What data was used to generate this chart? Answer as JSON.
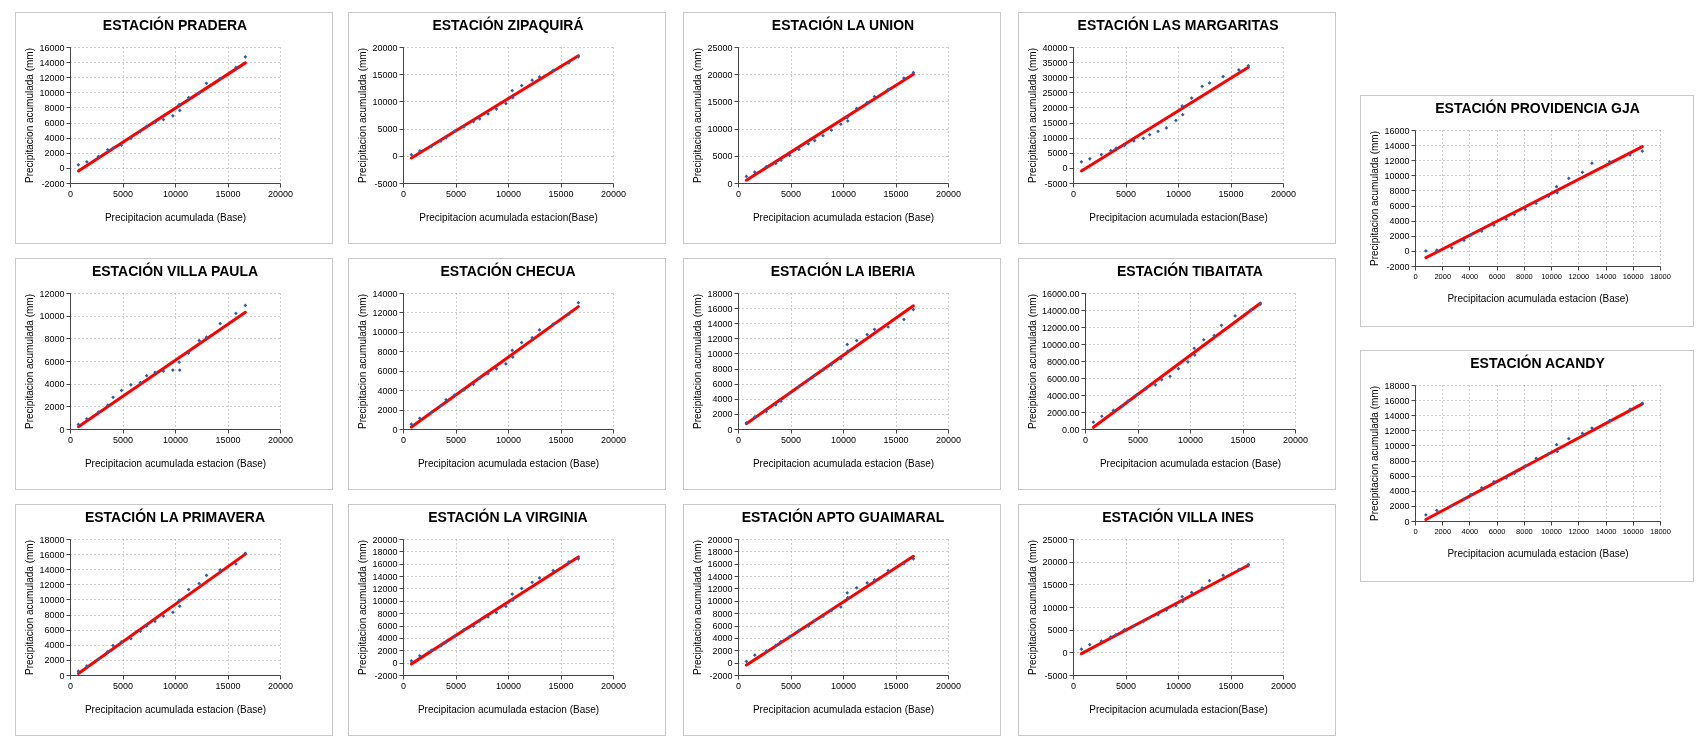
{
  "chart_data": [
    {
      "type": "scatter",
      "title": "ESTACIÓN  PRADERA",
      "xlabel": "Precipitacion  acumulada (Base)",
      "ylabel": "Precipitacion  acumulada  (mm)",
      "xlim": [
        0,
        20000
      ],
      "xticks": [
        0,
        5000,
        10000,
        15000,
        20000
      ],
      "ylim": [
        -2000,
        16000
      ],
      "yticks": [
        -2000,
        0,
        2000,
        4000,
        6000,
        8000,
        10000,
        12000,
        14000,
        16000
      ],
      "grid": true,
      "marker": "diamond",
      "series": [
        {
          "type": "scatter",
          "color": "#2e5ea8",
          "x": [
            800,
            1600,
            2700,
            3600,
            4100,
            4900,
            5800,
            6700,
            7300,
            8100,
            8900,
            9800,
            10400,
            10450,
            11300,
            12300,
            13000,
            14300,
            15800,
            16700
          ],
          "values": [
            400,
            800,
            1500,
            2400,
            2600,
            3000,
            3900,
            4800,
            5500,
            6000,
            6400,
            6900,
            8400,
            7600,
            9300,
            9900,
            11200,
            11800,
            13300,
            14700
          ]
        },
        {
          "type": "line",
          "color": "#ff0000",
          "marker": "none",
          "x": [
            800,
            16700
          ],
          "values": [
            -400,
            13900
          ]
        }
      ]
    },
    {
      "type": "scatter",
      "title": "ESTACIÓN ZIPAQUIRÁ",
      "xlabel": "Precipitacion  acumulada estacion(Base)",
      "ylabel": "Precipitacion  acumulada  (mm)",
      "xlim": [
        0,
        20000
      ],
      "xticks": [
        0,
        5000,
        10000,
        15000,
        20000
      ],
      "ylim": [
        -5000,
        20000
      ],
      "yticks": [
        -5000,
        0,
        5000,
        10000,
        15000,
        20000
      ],
      "grid": true,
      "marker": "diamond",
      "series": [
        {
          "type": "scatter",
          "color": "#2e5ea8",
          "x": [
            800,
            1600,
            2700,
            3600,
            4100,
            4900,
            5800,
            6700,
            7300,
            8100,
            8900,
            9800,
            10400,
            10450,
            11300,
            12300,
            13000,
            14300,
            15800,
            16700
          ],
          "values": [
            200,
            900,
            1700,
            2700,
            3300,
            4500,
            5300,
            6300,
            6800,
            7700,
            8600,
            9600,
            12000,
            10700,
            12900,
            13900,
            14500,
            15700,
            17100,
            18200
          ]
        },
        {
          "type": "line",
          "color": "#ff0000",
          "marker": "none",
          "x": [
            800,
            16700
          ],
          "values": [
            -400,
            18400
          ]
        }
      ]
    },
    {
      "type": "scatter",
      "title": "ESTACIÓN LA UNION",
      "xlabel": "Precipitacion  acumulada estacion  (Base)",
      "ylabel": "Precipitacion  acumulada  (mm)",
      "xlim": [
        0,
        20000
      ],
      "xticks": [
        0,
        5000,
        10000,
        15000,
        20000
      ],
      "ylim": [
        0,
        25000
      ],
      "yticks": [
        0,
        5000,
        10000,
        15000,
        20000,
        25000
      ],
      "grid": true,
      "marker": "diamond",
      "series": [
        {
          "type": "scatter",
          "color": "#2e5ea8",
          "x": [
            800,
            1600,
            2700,
            3600,
            4100,
            4900,
            5800,
            6700,
            7300,
            8100,
            8900,
            9800,
            10400,
            10450,
            11300,
            12300,
            13000,
            14300,
            15800,
            16700
          ],
          "values": [
            1200,
            2000,
            3000,
            3600,
            4200,
            5100,
            6200,
            7200,
            7800,
            8700,
            9700,
            10800,
            12000,
            11400,
            13700,
            14800,
            15900,
            17200,
            19300,
            20300
          ]
        },
        {
          "type": "line",
          "color": "#ff0000",
          "marker": "none",
          "x": [
            800,
            16700
          ],
          "values": [
            500,
            20000
          ]
        }
      ]
    },
    {
      "type": "scatter",
      "title": "ESTACIÓN LAS MARGARITAS",
      "xlabel": "Precipitacion  acumulada estacion(Base)",
      "ylabel": "Precipitacion  acumulada  (mm)",
      "xlim": [
        0,
        20000
      ],
      "xticks": [
        0,
        5000,
        10000,
        15000,
        20000
      ],
      "ylim": [
        -5000,
        40000
      ],
      "yticks": [
        -5000,
        0,
        5000,
        10000,
        15000,
        20000,
        25000,
        30000,
        35000,
        40000
      ],
      "grid": true,
      "marker": "diamond",
      "series": [
        {
          "type": "scatter",
          "color": "#2e5ea8",
          "x": [
            800,
            1600,
            2700,
            3600,
            4100,
            4900,
            5800,
            6700,
            7300,
            8100,
            8900,
            9800,
            10400,
            10450,
            11300,
            12300,
            13000,
            14300,
            15800,
            16700
          ],
          "values": [
            2000,
            3000,
            4400,
            5700,
            6500,
            7400,
            8900,
            9800,
            11000,
            12100,
            13200,
            15700,
            20500,
            17600,
            23100,
            27000,
            28100,
            30200,
            32400,
            33800
          ]
        },
        {
          "type": "line",
          "color": "#ff0000",
          "marker": "none",
          "x": [
            800,
            16700
          ],
          "values": [
            -1000,
            33300
          ]
        }
      ]
    },
    {
      "type": "scatter",
      "title": "ESTACIÓN PROVIDENCIA GJA",
      "xlabel": "Precipitacion  acumulada estacion  (Base)",
      "ylabel": "Precipitacion  acumulada  (mm)",
      "xlim": [
        0,
        18000
      ],
      "xticks": [
        0,
        2000,
        4000,
        6000,
        8000,
        10000,
        12000,
        14000,
        16000,
        18000
      ],
      "ylim": [
        -2000,
        16000
      ],
      "yticks": [
        -2000,
        0,
        2000,
        4000,
        6000,
        8000,
        10000,
        12000,
        14000,
        16000
      ],
      "grid": true,
      "marker": "diamond",
      "series": [
        {
          "type": "scatter",
          "color": "#2e5ea8",
          "x": [
            800,
            1600,
            2700,
            3600,
            4100,
            4900,
            5800,
            6700,
            7300,
            8100,
            8900,
            9800,
            10400,
            10450,
            11300,
            12300,
            13000,
            14300,
            15800,
            16700
          ],
          "values": [
            0,
            100,
            400,
            1400,
            2100,
            2600,
            3400,
            4200,
            4800,
            5500,
            6300,
            7200,
            8500,
            7700,
            9600,
            10400,
            11600,
            11800,
            12700,
            13200
          ]
        },
        {
          "type": "line",
          "color": "#ff0000",
          "marker": "none",
          "x": [
            800,
            16700
          ],
          "values": [
            -900,
            13800
          ]
        }
      ]
    },
    {
      "type": "scatter",
      "title": "ESTACIÓN VILLA PAULA",
      "xlabel": "Precipitacion  acumulada estacion (Base)",
      "ylabel": "Precipitacion  acumulada  (mm)",
      "xlim": [
        0,
        20000
      ],
      "xticks": [
        0,
        5000,
        10000,
        15000,
        20000
      ],
      "ylim": [
        0,
        12000
      ],
      "yticks": [
        0,
        2000,
        4000,
        6000,
        8000,
        10000,
        12000
      ],
      "grid": true,
      "marker": "diamond",
      "series": [
        {
          "type": "scatter",
          "color": "#2e5ea8",
          "x": [
            800,
            1600,
            2700,
            3600,
            4100,
            4900,
            5800,
            6700,
            7300,
            8100,
            8900,
            9800,
            10400,
            10450,
            11300,
            12300,
            13000,
            14300,
            15800,
            16700
          ],
          "values": [
            400,
            900,
            1500,
            2100,
            2800,
            3400,
            3900,
            4100,
            4700,
            5000,
            5100,
            5200,
            5900,
            5200,
            6700,
            7800,
            8100,
            9300,
            10200,
            10900
          ]
        },
        {
          "type": "line",
          "color": "#ff0000",
          "marker": "none",
          "x": [
            800,
            16700
          ],
          "values": [
            200,
            10300
          ]
        }
      ]
    },
    {
      "type": "scatter",
      "title": "ESTACIÓN CHECUA",
      "xlabel": "Precipitacion  acumulada estacion (Base)",
      "ylabel": "Precipitacion  acumulada  (mm)",
      "xlim": [
        0,
        20000
      ],
      "xticks": [
        0,
        5000,
        10000,
        15000,
        20000
      ],
      "ylim": [
        0,
        14000
      ],
      "yticks": [
        0,
        2000,
        4000,
        6000,
        8000,
        10000,
        12000,
        14000
      ],
      "grid": true,
      "marker": "diamond",
      "series": [
        {
          "type": "scatter",
          "color": "#2e5ea8",
          "x": [
            800,
            1600,
            2700,
            3600,
            4100,
            4900,
            5800,
            6700,
            7300,
            8100,
            8900,
            9800,
            10400,
            10450,
            11300,
            12300,
            13000,
            14300,
            15800,
            16700
          ],
          "values": [
            500,
            1100,
            1700,
            2400,
            3000,
            3500,
            4000,
            4600,
            5200,
            5700,
            6200,
            6700,
            8100,
            7400,
            8900,
            9400,
            10200,
            10800,
            11800,
            13000
          ]
        },
        {
          "type": "line",
          "color": "#ff0000",
          "marker": "none",
          "x": [
            800,
            16700
          ],
          "values": [
            200,
            12600
          ]
        }
      ]
    },
    {
      "type": "scatter",
      "title": "ESTACIÓN LA IBERIA",
      "xlabel": "Precipitacion  acumulada estacion  (Base)",
      "ylabel": "Precipitacion  acumulada  (mm)",
      "xlim": [
        0,
        20000
      ],
      "xticks": [
        0,
        5000,
        10000,
        15000,
        20000
      ],
      "ylim": [
        0,
        18000
      ],
      "yticks": [
        0,
        2000,
        4000,
        6000,
        8000,
        10000,
        12000,
        14000,
        16000,
        18000
      ],
      "grid": true,
      "marker": "diamond",
      "series": [
        {
          "type": "scatter",
          "color": "#2e5ea8",
          "x": [
            800,
            1600,
            2700,
            3600,
            4100,
            4900,
            5800,
            6700,
            7300,
            8100,
            8900,
            9800,
            10400,
            10450,
            11300,
            12300,
            13000,
            14300,
            15800,
            16700
          ],
          "values": [
            800,
            1600,
            2300,
            3200,
            3700,
            4700,
            5600,
            6500,
            7100,
            7800,
            8500,
            9300,
            11200,
            10300,
            11700,
            12500,
            13200,
            13500,
            14500,
            15800
          ]
        },
        {
          "type": "line",
          "color": "#ff0000",
          "marker": "none",
          "x": [
            800,
            16700
          ],
          "values": [
            700,
            16300
          ]
        }
      ]
    },
    {
      "type": "scatter",
      "title": "ESTACIÓN TIBAITATA",
      "xlabel": "Precipitacion  acumulada estacion  (Base)",
      "ylabel": "Precipitacion  acumulada  (mm)",
      "xlim": [
        0,
        20000
      ],
      "xticks": [
        0,
        5000,
        10000,
        15000,
        20000
      ],
      "ylim": [
        0,
        16000
      ],
      "yticks": [
        {
          "value": 0,
          "label": "0.00"
        },
        {
          "value": 2000,
          "label": "2000.00"
        },
        {
          "value": 4000,
          "label": "4000.00"
        },
        {
          "value": 6000,
          "label": "6000.00"
        },
        {
          "value": 8000,
          "label": "8000.00"
        },
        {
          "value": 10000,
          "label": "10000.00"
        },
        {
          "value": 12000,
          "label": "12000.00"
        },
        {
          "value": 14000,
          "label": "14000.00"
        },
        {
          "value": 16000,
          "label": "16000.00"
        }
      ],
      "grid": true,
      "marker": "diamond",
      "series": [
        {
          "type": "scatter",
          "color": "#2e5ea8",
          "x": [
            800,
            1600,
            2700,
            3600,
            4100,
            4900,
            5800,
            6700,
            7300,
            8100,
            8900,
            9800,
            10400,
            10450,
            11300,
            12300,
            13000,
            14300,
            15800,
            16700
          ],
          "values": [
            800,
            1500,
            2200,
            2700,
            3300,
            4000,
            4700,
            5200,
            5800,
            6200,
            7100,
            7900,
            9500,
            8700,
            10500,
            11000,
            12200,
            13300,
            14000,
            14700
          ]
        },
        {
          "type": "line",
          "color": "#ff0000",
          "marker": "none",
          "x": [
            800,
            16700
          ],
          "values": [
            200,
            14800
          ]
        }
      ]
    },
    {
      "type": "scatter",
      "title": "ESTACIÓN ACANDY",
      "xlabel": "Precipitacion  acumulada estacion  (Base)",
      "ylabel": "Precipitacion  acumulada  (mm)",
      "xlim": [
        0,
        18000
      ],
      "xticks": [
        0,
        2000,
        4000,
        6000,
        8000,
        10000,
        12000,
        14000,
        16000,
        18000
      ],
      "ylim": [
        0,
        18000
      ],
      "yticks": [
        0,
        2000,
        4000,
        6000,
        8000,
        10000,
        12000,
        14000,
        16000,
        18000
      ],
      "grid": true,
      "marker": "diamond",
      "series": [
        {
          "type": "scatter",
          "color": "#2e5ea8",
          "x": [
            800,
            1600,
            2700,
            3600,
            4100,
            4900,
            5800,
            6700,
            7300,
            8100,
            8900,
            9800,
            10400,
            10450,
            11300,
            12300,
            13000,
            14300,
            15800,
            16700
          ],
          "values": [
            800,
            1400,
            2000,
            2900,
            3500,
            4400,
            5200,
            5700,
            6300,
            7300,
            8300,
            8900,
            10100,
            9200,
            10900,
            11600,
            12300,
            13300,
            14800,
            15600
          ]
        },
        {
          "type": "line",
          "color": "#ff0000",
          "marker": "none",
          "x": [
            800,
            16700
          ],
          "values": [
            200,
            15500
          ]
        }
      ]
    },
    {
      "type": "scatter",
      "title": "ESTACIÓN LA PRIMAVERA",
      "xlabel": "Precipitacion  acumulada estacion  (Base)",
      "ylabel": "Precipitacion  acumulada  (mm)",
      "xlim": [
        0,
        20000
      ],
      "xticks": [
        0,
        5000,
        10000,
        15000,
        20000
      ],
      "ylim": [
        0,
        18000
      ],
      "yticks": [
        0,
        2000,
        4000,
        6000,
        8000,
        10000,
        12000,
        14000,
        16000,
        18000
      ],
      "grid": true,
      "marker": "diamond",
      "series": [
        {
          "type": "scatter",
          "color": "#2e5ea8",
          "x": [
            800,
            1600,
            2700,
            3600,
            4100,
            4900,
            5800,
            6700,
            7300,
            8100,
            8900,
            9800,
            10400,
            10450,
            11300,
            12300,
            13000,
            14300,
            15800,
            16700
          ],
          "values": [
            500,
            1200,
            2100,
            3100,
            3900,
            4400,
            4800,
            5800,
            6500,
            7100,
            7800,
            8300,
            9900,
            9100,
            11300,
            12100,
            13200,
            13900,
            14700,
            16100
          ]
        },
        {
          "type": "line",
          "color": "#ff0000",
          "marker": "none",
          "x": [
            800,
            16700
          ],
          "values": [
            200,
            16000
          ]
        }
      ]
    },
    {
      "type": "scatter",
      "title": "ESTACIÓN LA VIRGINIA",
      "xlabel": "Precipitacion  acumulada estacion  (Base)",
      "ylabel": "Precipitacion  acumulada  (mm)",
      "xlim": [
        0,
        20000
      ],
      "xticks": [
        0,
        5000,
        10000,
        15000,
        20000
      ],
      "ylim": [
        -2000,
        20000
      ],
      "yticks": [
        -2000,
        0,
        2000,
        4000,
        6000,
        8000,
        10000,
        12000,
        14000,
        16000,
        18000,
        20000
      ],
      "grid": true,
      "marker": "diamond",
      "series": [
        {
          "type": "scatter",
          "color": "#2e5ea8",
          "x": [
            800,
            1600,
            2700,
            3600,
            4100,
            4900,
            5800,
            6700,
            7300,
            8100,
            8900,
            9800,
            10400,
            10450,
            11300,
            12300,
            13000,
            14300,
            15800,
            16700
          ],
          "values": [
            300,
            1100,
            2000,
            2700,
            3300,
            4200,
            5300,
            5900,
            6700,
            7400,
            8100,
            9100,
            11100,
            10100,
            12000,
            13000,
            13700,
            14900,
            16300,
            16800
          ]
        },
        {
          "type": "line",
          "color": "#ff0000",
          "marker": "none",
          "x": [
            800,
            16700
          ],
          "values": [
            -200,
            17100
          ]
        }
      ]
    },
    {
      "type": "scatter",
      "title": "ESTACIÓN APTO GUAIMARAL",
      "xlabel": "Precipitacion  acumulada estacion  (Base)",
      "ylabel": "Precipitacion  acumulada  (mm)",
      "xlim": [
        0,
        20000
      ],
      "xticks": [
        0,
        5000,
        10000,
        15000,
        20000
      ],
      "ylim": [
        -2000,
        20000
      ],
      "yticks": [
        -2000,
        0,
        2000,
        4000,
        6000,
        8000,
        10000,
        12000,
        14000,
        16000,
        18000,
        20000
      ],
      "grid": true,
      "marker": "diamond",
      "series": [
        {
          "type": "scatter",
          "color": "#2e5ea8",
          "x": [
            800,
            1600,
            2700,
            3600,
            4100,
            4900,
            5800,
            6700,
            7300,
            8100,
            8900,
            9800,
            10400,
            10450,
            11300,
            12300,
            13000,
            14300,
            15800,
            16700
          ],
          "values": [
            200,
            1200,
            1900,
            2800,
            3400,
            4200,
            5200,
            5900,
            6800,
            7500,
            8400,
            9000,
            11300,
            10500,
            12100,
            12900,
            13400,
            14900,
            16000,
            16800
          ]
        },
        {
          "type": "line",
          "color": "#ff0000",
          "marker": "none",
          "x": [
            800,
            16700
          ],
          "values": [
            -400,
            17200
          ]
        }
      ]
    },
    {
      "type": "scatter",
      "title": "ESTACIÓN VILLA INES",
      "xlabel": "Precipitacion  acumulada estacion(Base)",
      "ylabel": "Precipitacion  acumulada  (mm)",
      "xlim": [
        0,
        20000
      ],
      "xticks": [
        0,
        5000,
        10000,
        15000,
        20000
      ],
      "ylim": [
        -5000,
        25000
      ],
      "yticks": [
        -5000,
        0,
        5000,
        10000,
        15000,
        20000,
        25000
      ],
      "grid": true,
      "marker": "diamond",
      "series": [
        {
          "type": "scatter",
          "color": "#2e5ea8",
          "x": [
            800,
            1600,
            2700,
            3600,
            4100,
            4900,
            5800,
            6700,
            7300,
            8100,
            8900,
            9800,
            10400,
            10450,
            11300,
            12300,
            13000,
            14300,
            15800,
            16700
          ],
          "values": [
            700,
            1700,
            2500,
            3400,
            3900,
            5000,
            5800,
            6800,
            7600,
            8300,
            9300,
            10300,
            12300,
            11200,
            13200,
            14200,
            15800,
            17000,
            18300,
            19400
          ]
        },
        {
          "type": "line",
          "color": "#ff0000",
          "marker": "none",
          "x": [
            800,
            16700
          ],
          "values": [
            -300,
            19200
          ]
        }
      ]
    }
  ]
}
